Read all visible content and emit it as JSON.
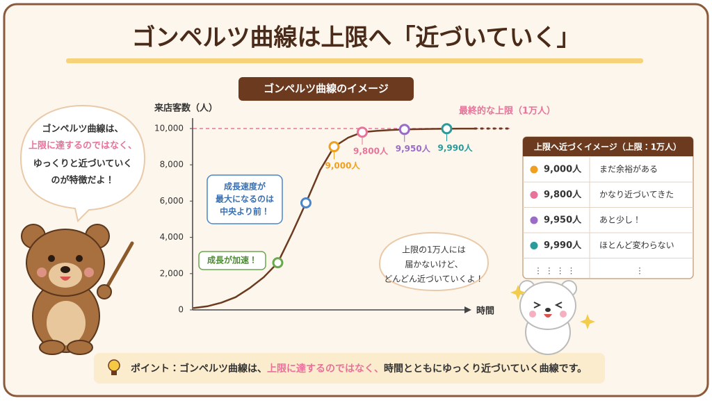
{
  "title": "ゴンペルツ曲線は上限へ「近づいていく」",
  "chart_data": {
    "type": "line",
    "title": "ゴンペルツ曲線のイメージ",
    "y_label": "来店客数（人）",
    "x_label": "時間",
    "ylim": [
      0,
      10000
    ],
    "yticks": [
      0,
      {
        "value": 2000,
        "label": "2,000"
      },
      {
        "value": 4000,
        "label": "4,000"
      },
      {
        "value": 6000,
        "label": "6,000"
      },
      {
        "value": 8000,
        "label": "8,000"
      },
      {
        "value": 10000,
        "label": "10,000"
      }
    ],
    "categories": [
      null,
      null,
      null,
      null,
      null,
      null,
      null,
      null,
      null,
      null,
      null,
      null,
      null,
      null,
      null,
      null,
      null,
      null,
      null,
      null,
      null
    ],
    "series": [
      {
        "color": "#6b3a1f",
        "values": [
          100,
          200,
          400,
          700,
          1200,
          1800,
          2600,
          4200,
          5900,
          7700,
          9000,
          9500,
          9800,
          9870,
          9920,
          9950,
          9965,
          9980,
          9990,
          9995,
          9998
        ]
      },
      {
        "values": [
          null,
          null,
          null,
          null,
          null,
          null,
          2600,
          null,
          5900,
          null,
          9000,
          null,
          9800,
          null,
          null,
          9950,
          null,
          null,
          9990,
          null,
          null
        ],
        "colors": [
          null,
          null,
          null,
          null,
          null,
          null,
          "#6aa84f",
          null,
          "#4a86c8",
          null,
          "#f0a020",
          null,
          "#e8739a",
          null,
          null,
          "#9b6bc8",
          null,
          null,
          "#2a9a9a",
          null,
          null
        ],
        "value_labels": [
          null,
          null,
          null,
          null,
          null,
          null,
          null,
          null,
          null,
          null,
          "9,000人",
          null,
          "9,800人",
          null,
          null,
          "9,950人",
          null,
          null,
          "9,990人",
          null,
          null
        ]
      }
    ],
    "limit": {
      "value": 10000,
      "label": "最終的な上限（1万人）",
      "color": "#e8739a"
    },
    "annotations": {
      "accelerating": "成長が加速！",
      "max_speed": [
        "成長速度が",
        "最大になるのは",
        "中央より前！"
      ]
    }
  },
  "speech": {
    "left": [
      "ゴンペルツ曲線は、",
      "上限に達するのではなく、",
      "ゆっくりと近づいていく",
      "のが特徴だよ！"
    ],
    "right": [
      "上限の1万人には",
      "届かないけど、",
      "どんどん近づいていくよ！"
    ]
  },
  "table": {
    "title": "上限へ近づくイメージ（上限：1万人）",
    "rows": [
      [
        "9,000人",
        "まだ余裕がある"
      ],
      [
        "9,800人",
        "かなり近づいてきた"
      ],
      [
        "9,950人",
        "あと少し！"
      ],
      [
        "9,990人",
        "ほとんど変わらない"
      ]
    ],
    "row_colors": [
      "#f0a020",
      "#e8739a",
      "#9b6bc8",
      "#2a9a9a"
    ],
    "ellipsis_row": [
      "⋮ ⋮ ⋮ ⋮",
      "⋮"
    ]
  },
  "tip": [
    "ポイント：ゴンペルツ曲線は、",
    "上限に達するのではなく、",
    "時間とともにゆっくり近づいていく曲線です。"
  ]
}
